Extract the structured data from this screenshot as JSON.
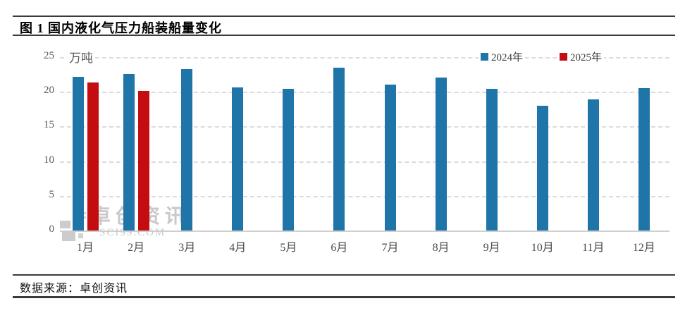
{
  "title": "图 1 国内液化气压力船装船量变化",
  "source": "数据来源：卓创资讯",
  "unit_label": "万吨",
  "watermark": {
    "brand": "卓创资讯",
    "domain": "SCI99.COM"
  },
  "legend": {
    "items": [
      {
        "label": "2024年",
        "color": "#1F74A8"
      },
      {
        "label": "2025年",
        "color": "#C30D10"
      }
    ]
  },
  "chart_data": {
    "type": "bar",
    "title": "图 1 国内液化气压力船装船量变化",
    "ylabel": "万吨",
    "ylim": [
      0,
      25
    ],
    "yticks": [
      0,
      5,
      10,
      15,
      20,
      25
    ],
    "grid": "dashed-horizontal",
    "legend_position": "top-right",
    "categories": [
      "1月",
      "2月",
      "3月",
      "4月",
      "5月",
      "6月",
      "7月",
      "8月",
      "9月",
      "10月",
      "11月",
      "12月"
    ],
    "series": [
      {
        "name": "2024年",
        "color": "#1F74A8",
        "values": [
          22.2,
          22.6,
          23.3,
          20.6,
          20.4,
          23.5,
          21.0,
          22.1,
          20.4,
          18.0,
          18.9,
          20.5
        ]
      },
      {
        "name": "2025年",
        "color": "#C30D10",
        "values": [
          21.3,
          20.1,
          null,
          null,
          null,
          null,
          null,
          null,
          null,
          null,
          null,
          null
        ]
      }
    ]
  }
}
